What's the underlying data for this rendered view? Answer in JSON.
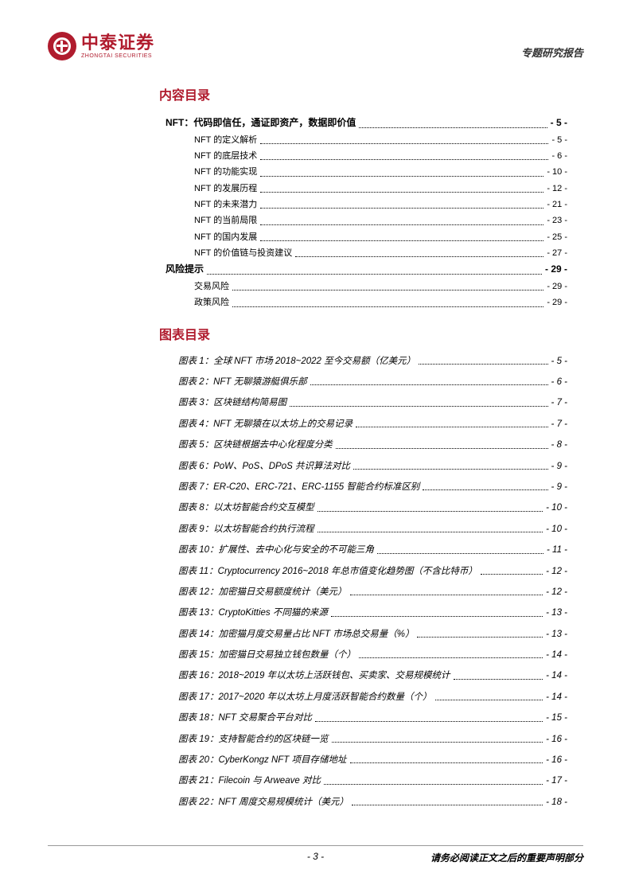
{
  "header": {
    "logo_cn": "中泰证券",
    "logo_en": "ZHONGTAI SECURITIES",
    "report_type": "专题研究报告"
  },
  "toc_header": "内容目录",
  "toc": [
    {
      "level": 1,
      "title": "NFT：代码即信任，通证即资产，数据即价值",
      "page": "- 5 -"
    },
    {
      "level": 2,
      "title": "NFT 的定义解析",
      "page": "- 5 -"
    },
    {
      "level": 2,
      "title": "NFT 的底层技术",
      "page": "- 6 -"
    },
    {
      "level": 2,
      "title": "NFT 的功能实现",
      "page": "- 10 -"
    },
    {
      "level": 2,
      "title": "NFT 的发展历程",
      "page": "- 12 -"
    },
    {
      "level": 2,
      "title": "NFT 的未来潜力",
      "page": "- 21 -"
    },
    {
      "level": 2,
      "title": "NFT 的当前局限",
      "page": "- 23 -"
    },
    {
      "level": 2,
      "title": "NFT 的国内发展",
      "page": "- 25 -"
    },
    {
      "level": 2,
      "title": "NFT 的价值链与投资建议",
      "page": "- 27 -"
    },
    {
      "level": 1,
      "title": "风险提示",
      "page": "- 29 -"
    },
    {
      "level": 2,
      "title": "交易风险",
      "page": "- 29 -"
    },
    {
      "level": 2,
      "title": "政策风险",
      "page": "- 29 -"
    }
  ],
  "figures_header": "图表目录",
  "figures": [
    {
      "title": "图表 1：全球 NFT 市场 2018~2022 至今交易额（亿美元）",
      "page": "- 5 -"
    },
    {
      "title": "图表 2：NFT 无聊猿游艇俱乐部",
      "page": "- 6 -"
    },
    {
      "title": "图表 3：区块链结构简易图",
      "page": "- 7 -"
    },
    {
      "title": "图表 4：NFT 无聊猿在以太坊上的交易记录",
      "page": "- 7 -"
    },
    {
      "title": "图表 5：区块链根据去中心化程度分类",
      "page": "- 8 -"
    },
    {
      "title": "图表 6：PoW、PoS、DPoS 共识算法对比",
      "page": "- 9 -"
    },
    {
      "title": "图表 7：ER-C20、ERC-721、ERC-1155 智能合约标准区别",
      "page": "- 9 -"
    },
    {
      "title": "图表 8：以太坊智能合约交互模型",
      "page": "- 10 -"
    },
    {
      "title": "图表 9：以太坊智能合约执行流程",
      "page": "- 10 -"
    },
    {
      "title": "图表 10：扩展性、去中心化与安全的不可能三角",
      "page": "- 11 -"
    },
    {
      "title": "图表 11：Cryptocurrency 2016~2018 年总市值变化趋势图（不含比特币）",
      "page": "- 12 -"
    },
    {
      "title": "图表 12：加密猫日交易额度统计（美元）",
      "page": "- 12 -"
    },
    {
      "title": "图表 13：CryptoKitties 不同猫的来源",
      "page": "- 13 -"
    },
    {
      "title": "图表 14：加密猫月度交易量占比 NFT 市场总交易量（%）",
      "page": "- 13 -"
    },
    {
      "title": "图表 15：加密猫日交易独立钱包数量（个）",
      "page": "- 14 -"
    },
    {
      "title": "图表 16：2018~2019 年以太坊上活跃钱包、买卖家、交易规模统计",
      "page": "- 14 -"
    },
    {
      "title": "图表 17：2017~2020 年以太坊上月度活跃智能合约数量（个）",
      "page": "- 14 -"
    },
    {
      "title": "图表 18：NFT 交易聚合平台对比",
      "page": "- 15 -"
    },
    {
      "title": "图表 19：支持智能合约的区块链一览",
      "page": "- 16 -"
    },
    {
      "title": "图表 20：CyberKongz NFT 项目存储地址",
      "page": "- 16 -"
    },
    {
      "title": "图表 21：Filecoin 与 Arweave 对比",
      "page": "- 17 -"
    },
    {
      "title": "图表 22：NFT 周度交易规模统计（美元）",
      "page": "- 18 -"
    }
  ],
  "footer": {
    "page_num": "- 3 -",
    "disclaimer": "请务必阅读正文之后的重要声明部分"
  }
}
